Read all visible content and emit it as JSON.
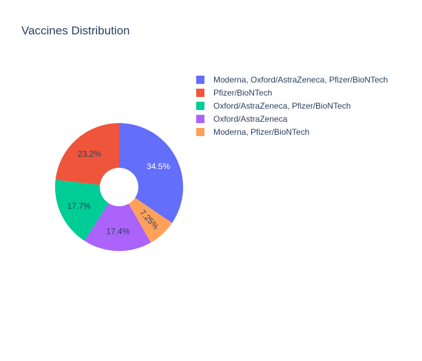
{
  "chart_data": {
    "type": "pie",
    "title": "Vaccines Distribution",
    "hole": true,
    "legend_position": "right",
    "slices": [
      {
        "label": "Moderna, Oxford/AstraZeneca, Pfizer/BioNTech",
        "percent": 34.5,
        "percent_label": "34.5%",
        "color": "#636efa",
        "text_color": "#ffffff"
      },
      {
        "label": "Moderna, Pfizer/BioNTech",
        "percent": 7.25,
        "percent_label": "7.25%",
        "color": "#ffa15a",
        "text_color": "#2a3f5f"
      },
      {
        "label": "Oxford/AstraZeneca",
        "percent": 17.4,
        "percent_label": "17.4%",
        "color": "#ab63fa",
        "text_color": "#2a3f5f"
      },
      {
        "label": "Oxford/AstraZeneca, Pfizer/BioNTech",
        "percent": 17.7,
        "percent_label": "17.7%",
        "color": "#00cc96",
        "text_color": "#2a3f5f"
      },
      {
        "label": "Pfizer/BioNTech",
        "percent": 23.2,
        "percent_label": "23.2%",
        "color": "#ef553b",
        "text_color": "#2a3f5f"
      }
    ],
    "legend_order": [
      "Moderna, Oxford/AstraZeneca, Pfizer/BioNTech",
      "Pfizer/BioNTech",
      "Oxford/AstraZeneca, Pfizer/BioNTech",
      "Oxford/AstraZeneca",
      "Moderna, Pfizer/BioNTech"
    ]
  }
}
